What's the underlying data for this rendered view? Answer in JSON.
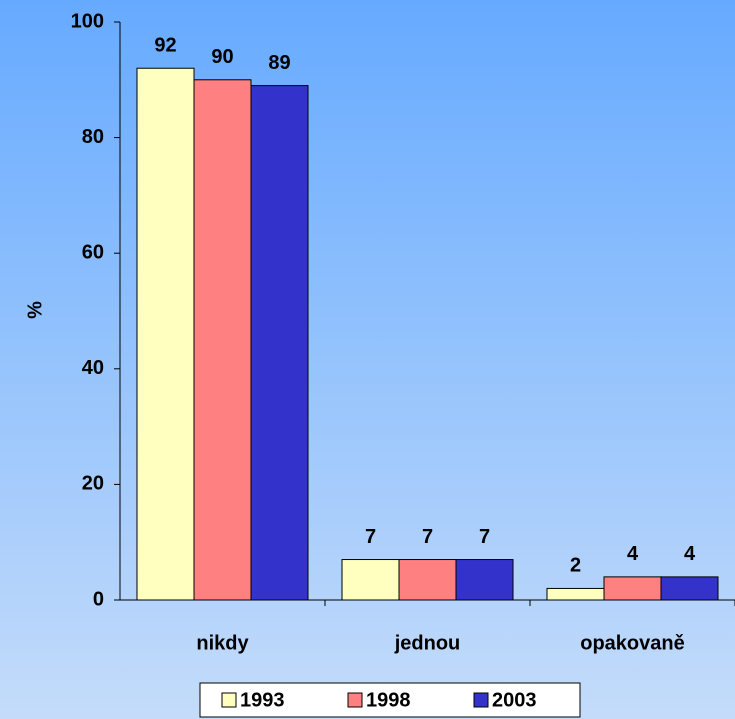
{
  "chart_data": {
    "type": "bar",
    "y_label": "%",
    "categories": [
      "nikdy",
      "jednou",
      "opakovaně"
    ],
    "series": [
      {
        "name": "1993",
        "color": "#ffffc0",
        "values": [
          92,
          7,
          2
        ]
      },
      {
        "name": "1998",
        "color": "#ff8080",
        "values": [
          90,
          7,
          4
        ]
      },
      {
        "name": "2003",
        "color": "#3333cc",
        "values": [
          89,
          7,
          4
        ]
      }
    ],
    "ylim": [
      0,
      100
    ],
    "yticks": [
      0,
      20,
      40,
      60,
      80,
      100
    ],
    "legend": "bottom"
  }
}
